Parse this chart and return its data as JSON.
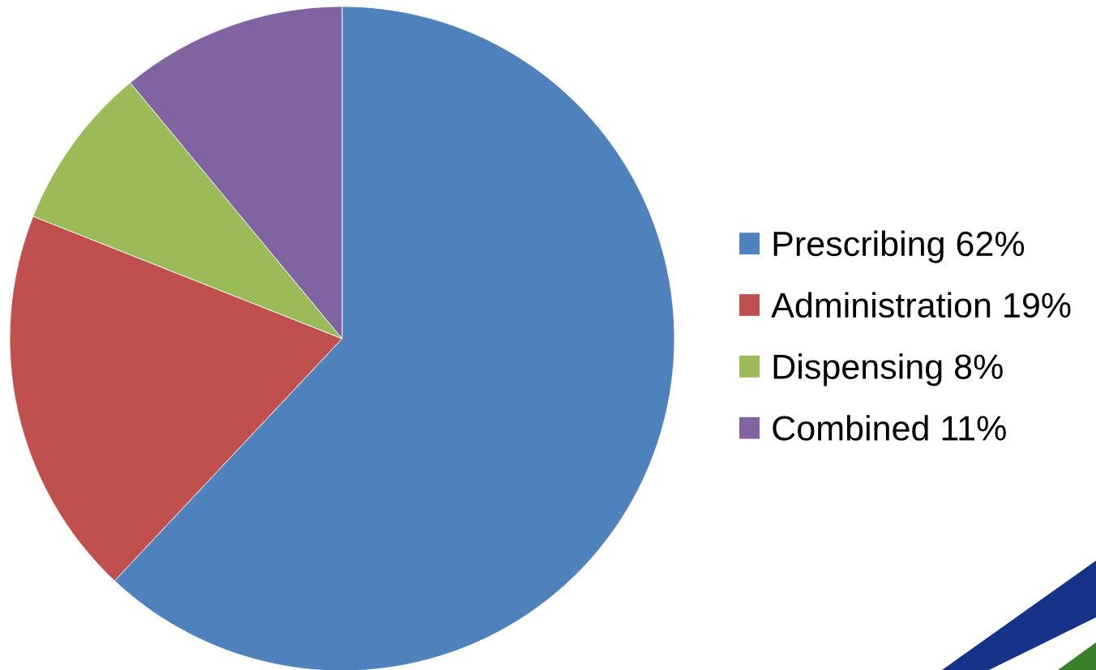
{
  "chart_data": {
    "type": "pie",
    "categories": [
      "Prescribing 62%",
      "Administration 19%",
      "Dispensing 8%",
      "Combined 11%"
    ],
    "values": [
      62,
      19,
      8,
      11
    ],
    "colors": [
      "#4f81bd",
      "#c0504d",
      "#9bbb59",
      "#8064a2"
    ],
    "legend": "right"
  }
}
